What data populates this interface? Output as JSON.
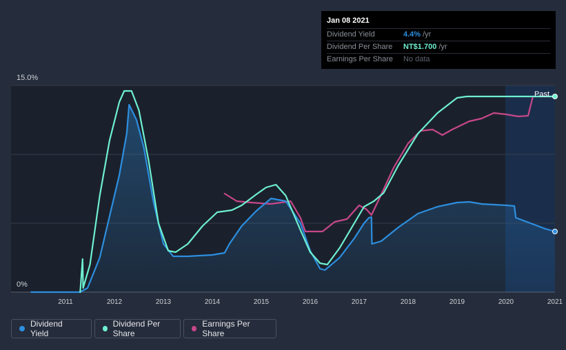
{
  "tooltip": {
    "date": "Jan 08 2021",
    "rows": [
      {
        "label": "Dividend Yield",
        "value": "4.4%",
        "unit": "/yr",
        "color": "#2d8fe0"
      },
      {
        "label": "Dividend Per Share",
        "value": "NT$1.700",
        "unit": "/yr",
        "color": "#6ef0d0"
      },
      {
        "label": "Earnings Per Share",
        "value": "No data",
        "unit": "",
        "color": "#5f6570"
      }
    ]
  },
  "legend": [
    {
      "label": "Dividend Yield",
      "color": "#2d8fe0"
    },
    {
      "label": "Dividend Per Share",
      "color": "#6ef0d0"
    },
    {
      "label": "Earnings Per Share",
      "color": "#c8478a"
    }
  ],
  "chart_data": {
    "type": "line",
    "x_ticks": [
      "2011",
      "2012",
      "2013",
      "2014",
      "2015",
      "2016",
      "2017",
      "2018",
      "2019",
      "2020",
      "2021"
    ],
    "y_tick_labels": [
      "15.0%",
      "0%"
    ],
    "ylim": [
      0,
      15
    ],
    "xlim": [
      2010.3,
      2021.0
    ],
    "past_label": "Past",
    "series": [
      {
        "name": "Dividend Yield",
        "color": "#2d8fe0",
        "points": [
          [
            2010.3,
            0
          ],
          [
            2011.3,
            0
          ],
          [
            2011.45,
            0.3
          ],
          [
            2011.7,
            2.5
          ],
          [
            2011.9,
            5.5
          ],
          [
            2012.1,
            8.5
          ],
          [
            2012.25,
            11.5
          ],
          [
            2012.3,
            13.6
          ],
          [
            2012.45,
            12.5
          ],
          [
            2012.6,
            10.5
          ],
          [
            2012.8,
            6.5
          ],
          [
            2013.0,
            3.5
          ],
          [
            2013.2,
            2.6
          ],
          [
            2013.5,
            2.6
          ],
          [
            2014.0,
            2.7
          ],
          [
            2014.25,
            2.85
          ],
          [
            2014.35,
            3.5
          ],
          [
            2014.6,
            4.8
          ],
          [
            2014.9,
            5.9
          ],
          [
            2015.2,
            6.8
          ],
          [
            2015.5,
            6.6
          ],
          [
            2015.8,
            5.0
          ],
          [
            2016.0,
            3.0
          ],
          [
            2016.2,
            1.7
          ],
          [
            2016.3,
            1.6
          ],
          [
            2016.6,
            2.5
          ],
          [
            2016.9,
            3.9
          ],
          [
            2017.1,
            5.0
          ],
          [
            2017.2,
            5.4
          ],
          [
            2017.25,
            5.45
          ],
          [
            2017.26,
            3.5
          ],
          [
            2017.45,
            3.7
          ],
          [
            2017.8,
            4.7
          ],
          [
            2018.2,
            5.7
          ],
          [
            2018.6,
            6.2
          ],
          [
            2019.0,
            6.5
          ],
          [
            2019.25,
            6.55
          ],
          [
            2019.5,
            6.4
          ],
          [
            2020.0,
            6.3
          ],
          [
            2020.17,
            6.25
          ],
          [
            2020.2,
            5.4
          ],
          [
            2020.5,
            5.0
          ],
          [
            2020.8,
            4.6
          ],
          [
            2021.0,
            4.4
          ]
        ]
      },
      {
        "name": "Dividend Per Share",
        "color": "#6ef0d0",
        "points": [
          [
            2011.3,
            0
          ],
          [
            2011.35,
            2.4
          ],
          [
            2011.36,
            0.3
          ],
          [
            2011.5,
            2.0
          ],
          [
            2011.7,
            7.0
          ],
          [
            2011.9,
            11.0
          ],
          [
            2012.1,
            13.8
          ],
          [
            2012.2,
            14.6
          ],
          [
            2012.35,
            14.6
          ],
          [
            2012.5,
            13.2
          ],
          [
            2012.7,
            9.5
          ],
          [
            2012.9,
            5.0
          ],
          [
            2013.1,
            3.0
          ],
          [
            2013.25,
            2.9
          ],
          [
            2013.5,
            3.5
          ],
          [
            2013.8,
            4.8
          ],
          [
            2014.1,
            5.8
          ],
          [
            2014.4,
            5.95
          ],
          [
            2014.6,
            6.3
          ],
          [
            2014.9,
            7.1
          ],
          [
            2015.1,
            7.6
          ],
          [
            2015.3,
            7.8
          ],
          [
            2015.5,
            7.0
          ],
          [
            2015.8,
            4.5
          ],
          [
            2016.0,
            2.9
          ],
          [
            2016.2,
            2.1
          ],
          [
            2016.35,
            2.0
          ],
          [
            2016.6,
            3.2
          ],
          [
            2016.9,
            5.0
          ],
          [
            2017.1,
            6.2
          ],
          [
            2017.3,
            6.6
          ],
          [
            2017.5,
            7.2
          ],
          [
            2017.8,
            9.2
          ],
          [
            2018.2,
            11.5
          ],
          [
            2018.6,
            13.0
          ],
          [
            2019.0,
            14.1
          ],
          [
            2019.2,
            14.2
          ],
          [
            2020.0,
            14.2
          ],
          [
            2021.0,
            14.2
          ]
        ]
      },
      {
        "name": "Earnings Per Share",
        "color": "#c8478a",
        "points": [
          [
            2014.25,
            7.15
          ],
          [
            2014.5,
            6.6
          ],
          [
            2014.8,
            6.5
          ],
          [
            2015.2,
            6.4
          ],
          [
            2015.6,
            6.6
          ],
          [
            2015.8,
            5.4
          ],
          [
            2015.9,
            4.4
          ],
          [
            2016.25,
            4.4
          ],
          [
            2016.5,
            5.1
          ],
          [
            2016.75,
            5.3
          ],
          [
            2017.0,
            6.3
          ],
          [
            2017.15,
            6.0
          ],
          [
            2017.25,
            5.6
          ],
          [
            2017.4,
            6.7
          ],
          [
            2017.7,
            9.0
          ],
          [
            2018.0,
            10.8
          ],
          [
            2018.25,
            11.7
          ],
          [
            2018.5,
            11.8
          ],
          [
            2018.7,
            11.4
          ],
          [
            2018.9,
            11.8
          ],
          [
            2019.25,
            12.4
          ],
          [
            2019.5,
            12.6
          ],
          [
            2019.75,
            13.0
          ],
          [
            2020.0,
            12.9
          ],
          [
            2020.25,
            12.75
          ],
          [
            2020.45,
            12.8
          ],
          [
            2020.55,
            14.2
          ],
          [
            2021.0,
            14.2
          ]
        ]
      }
    ]
  }
}
